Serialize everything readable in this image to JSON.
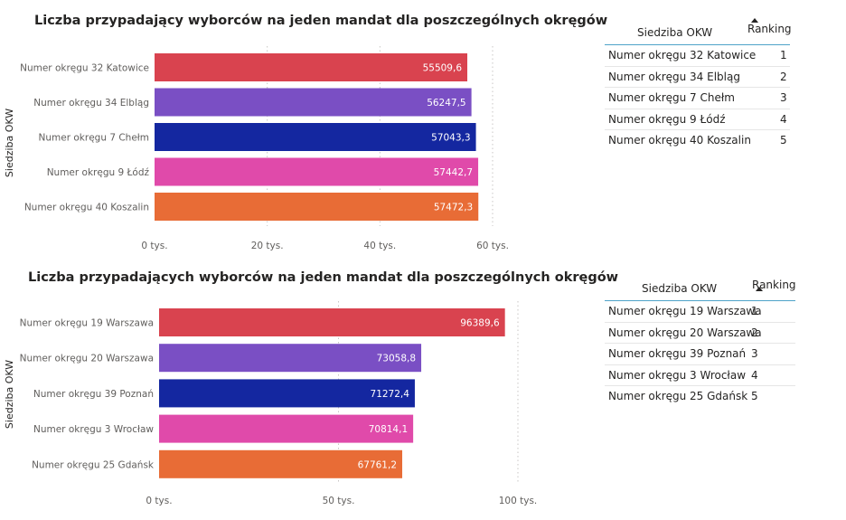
{
  "chart_data": [
    {
      "type": "bar",
      "orientation": "horizontal",
      "title": "Liczba przypadający wyborców na jeden mandat dla poszczególnych okręgów",
      "ylabel": "Siedziba OKW",
      "xlabel": "",
      "categories": [
        "Numer okręgu 32 Katowice",
        "Numer okręgu 34 Elbląg",
        "Numer okręgu 7 Chełm",
        "Numer okręgu 9 Łódź",
        "Numer okręgu 40 Koszalin"
      ],
      "values": [
        55509.6,
        56247.5,
        57043.3,
        57442.7,
        57472.3
      ],
      "value_labels": [
        "55509,6",
        "56247,5",
        "57043,3",
        "57442,7",
        "57472,3"
      ],
      "bar_colors": [
        "#d9434f",
        "#7a4fc4",
        "#1427a0",
        "#e04aaa",
        "#e86c36"
      ],
      "xlim": [
        0,
        60000
      ],
      "xticks": [
        0,
        20000,
        40000,
        60000
      ],
      "xtick_labels": [
        "0 tys.",
        "20 tys.",
        "40 tys.",
        "60 tys."
      ],
      "grid": true
    },
    {
      "type": "bar",
      "orientation": "horizontal",
      "title": "Liczba przypadających wyborców na jeden mandat dla poszczególnych okręgów",
      "ylabel": "Siedziba OKW",
      "xlabel": "",
      "categories": [
        "Numer okręgu 19 Warszawa",
        "Numer okręgu 20 Warszawa",
        "Numer okręgu 39 Poznań",
        "Numer okręgu 3 Wrocław",
        "Numer okręgu 25 Gdańsk"
      ],
      "values": [
        96389.6,
        73058.8,
        71272.4,
        70814.1,
        67761.2
      ],
      "value_labels": [
        "96389,6",
        "73058,8",
        "71272,4",
        "70814,1",
        "67761,2"
      ],
      "bar_colors": [
        "#d9434f",
        "#7a4fc4",
        "#1427a0",
        "#e04aaa",
        "#e86c36"
      ],
      "xlim": [
        0,
        100000
      ],
      "xticks": [
        0,
        50000,
        100000
      ],
      "xtick_labels": [
        "0 tys.",
        "50 tys.",
        "100 tys."
      ],
      "grid": true
    }
  ],
  "tables": [
    {
      "columns": [
        "Siedziba OKW",
        "Ranking"
      ],
      "rows": [
        {
          "name": "Numer okręgu 32 Katowice",
          "rank": "1"
        },
        {
          "name": "Numer okręgu 34 Elbląg",
          "rank": "2"
        },
        {
          "name": "Numer okręgu 7 Chełm",
          "rank": "3"
        },
        {
          "name": "Numer okręgu 9 Łódź",
          "rank": "4"
        },
        {
          "name": "Numer okręgu 40 Koszalin",
          "rank": "5"
        }
      ]
    },
    {
      "columns": [
        "Siedziba OKW",
        "Ranking"
      ],
      "rows": [
        {
          "name": "Numer okręgu 19 Warszawa",
          "rank": "1"
        },
        {
          "name": "Numer okręgu 20 Warszawa",
          "rank": "2"
        },
        {
          "name": "Numer okręgu 39 Poznań",
          "rank": "3"
        },
        {
          "name": "Numer okręgu 3 Wrocław",
          "rank": "4"
        },
        {
          "name": "Numer okręgu 25 Gdańsk",
          "rank": "5"
        }
      ]
    }
  ]
}
